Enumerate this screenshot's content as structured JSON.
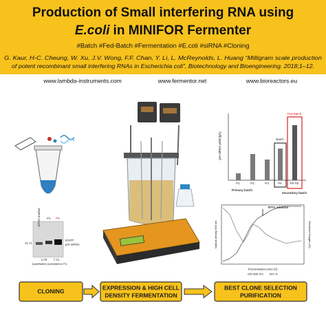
{
  "header": {
    "title_line1": "Production of Small interfering RNA using",
    "title_line2_italic": "E.coli",
    "title_line2_rest": "in MINIFOR Fermenter",
    "hashtags": "#Batch  #Fed-Batch  #Fermentation  #E.coli  #siRNA  #Cloning",
    "citation_line1": "G. Kaur, H-C. Cheung, W. Xu, J.V. Wong, F.F. Chan, Y. Li, L. McReynolds, L. Huang “Milligram scale production",
    "citation_line2": "of potent recombinant small interfering RNAs in Escherichia coli”, Biotechnology and Bioengineering. 2018;1–12."
  },
  "links": [
    "www.lambda-instruments.com",
    "www.fermentor.net",
    "www.bioreactors.eu"
  ],
  "bar_figure": {
    "y_axis_label": "pre-siRNA yield [g/L]",
    "categories": [
      "P1",
      "P2",
      "P3",
      "P6",
      "P6 FB"
    ],
    "group_labels": [
      "Primary batch",
      "Secondary batch"
    ],
    "box_labels": [
      "Batch",
      "Fed Batch"
    ]
  },
  "line_figure": {
    "annotation": "IPTG addition",
    "x_axis_label": "Fermentation time (h)",
    "y_axis_label": "Optical density 600 nm",
    "y2_axis_label": "Dissolved Oxygen (%)",
    "legend": [
      "OD 600 nm",
      "DO %"
    ]
  },
  "gel_figure": {
    "lanes": [
      "siRNA marker",
      "P1",
      "P6"
    ],
    "size_label": "21 nt",
    "band_label_line1": "EGFP",
    "band_label_line2": "pre-siRNA",
    "quantification": [
      "1.00",
      "7.21"
    ],
    "caption": "Quantification (normalized to P1)"
  },
  "steps": [
    {
      "lines": [
        "CLONING"
      ]
    },
    {
      "lines": [
        "EXPRESSION & HIGH CELL",
        "DENSITY FERMENTATION"
      ]
    },
    {
      "lines": [
        "BEST CLONE SELECTION",
        "PURIFICATION"
      ]
    }
  ]
}
